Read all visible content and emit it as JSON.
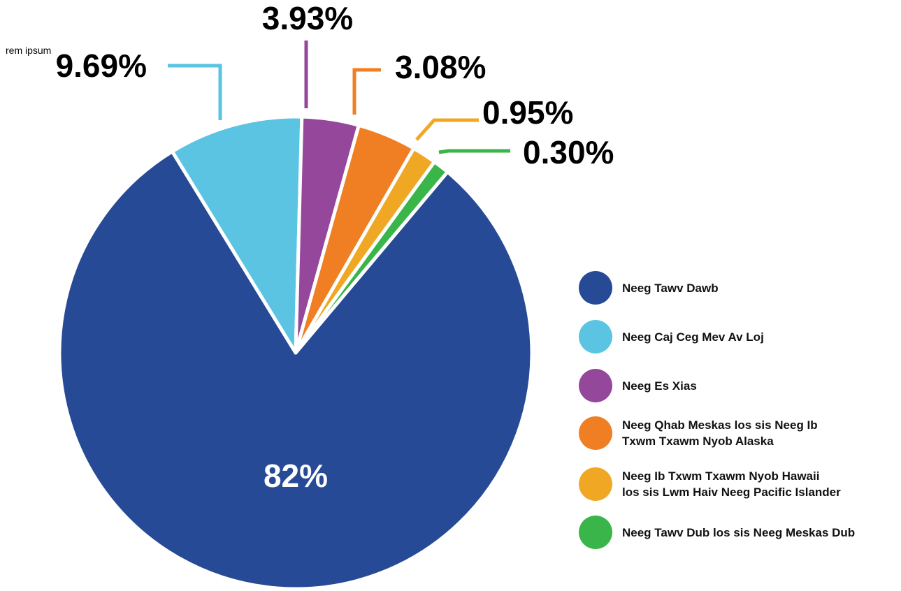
{
  "stray_text": "rem ipsum",
  "chart_data": {
    "type": "pie",
    "title": "",
    "slices": [
      {
        "label": "Neeg Tawv Dawb",
        "value": 82,
        "value_label": "82%",
        "color": "#264A96"
      },
      {
        "label": "Neeg Caj Ceg Mev Av Loj",
        "value": 9.69,
        "value_label": "9.69%",
        "color": "#5BC4E2"
      },
      {
        "label": "Neeg Es Xias",
        "value": 3.93,
        "value_label": "3.93%",
        "color": "#94479B"
      },
      {
        "label": "Neeg Qhab Meskas los sis Neeg Ib Txwm Txawm Nyob Alaska",
        "value": 3.08,
        "value_label": "3.08%",
        "color": "#F07E22"
      },
      {
        "label": "Neeg Ib Txwm Txawm Nyob Hawaii los sis Lwm Haiv Neeg Pacific Islander",
        "value": 0.95,
        "value_label": "0.95%",
        "color": "#F0A824"
      },
      {
        "label": "Neeg Tawv Dub los sis Neeg Meskas Dub",
        "value": 0.3,
        "value_label": "0.30%",
        "color": "#3AB54A"
      }
    ],
    "legend": {
      "position": "right",
      "items": [
        {
          "lines": [
            "Neeg Tawv Dawb"
          ]
        },
        {
          "lines": [
            "Neeg Caj Ceg Mev Av Loj"
          ]
        },
        {
          "lines": [
            "Neeg Es Xias"
          ]
        },
        {
          "lines": [
            "Neeg Qhab Meskas los sis Neeg Ib",
            "Txwm Txawm Nyob Alaska"
          ]
        },
        {
          "lines": [
            "Neeg Ib Txwm Txawm Nyob Hawaii",
            "los sis Lwm Haiv Neeg Pacific Islander"
          ]
        },
        {
          "lines": [
            "Neeg Tawv Dub los sis Neeg Meskas Dub"
          ]
        }
      ]
    }
  }
}
